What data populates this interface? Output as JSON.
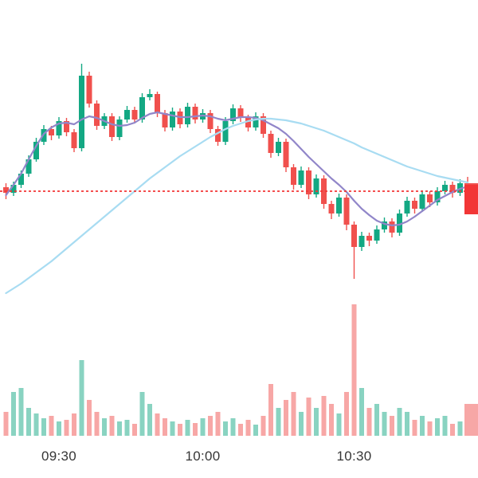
{
  "chart_data": {
    "type": "candlestick",
    "title": "",
    "timeframe_ticks": [
      {
        "label": "09:30",
        "index": 7
      },
      {
        "label": "10:00",
        "index": 26
      },
      {
        "label": "10:30",
        "index": 46
      }
    ],
    "price_axis": {
      "min": 99.48,
      "max": 100.96,
      "grid": false
    },
    "volume_axis": {
      "max": 170
    },
    "previous_close": {
      "price": 100.0,
      "style": "dashed",
      "color": "#f23636"
    },
    "current_price_label": {
      "color": "#f23636"
    },
    "colors": {
      "up": "#13a883",
      "down": "#f0504d",
      "volume_opacity": 0.5
    },
    "candles": [
      [
        100.02,
        100.04,
        99.96,
        99.992,
        30
      ],
      [
        99.992,
        100.048,
        99.976,
        100.032,
        55
      ],
      [
        100.032,
        100.104,
        100.016,
        100.088,
        60
      ],
      [
        100.088,
        100.18,
        100.072,
        100.16,
        35
      ],
      [
        100.16,
        100.268,
        100.148,
        100.248,
        28
      ],
      [
        100.248,
        100.332,
        100.232,
        100.312,
        22
      ],
      [
        100.312,
        100.328,
        100.256,
        100.28,
        25
      ],
      [
        100.28,
        100.372,
        100.264,
        100.352,
        18
      ],
      [
        100.352,
        100.368,
        100.276,
        100.296,
        20
      ],
      [
        100.296,
        100.312,
        100.196,
        100.216,
        28
      ],
      [
        100.216,
        100.64,
        100.2,
        100.58,
        95
      ],
      [
        100.58,
        100.6,
        100.42,
        100.44,
        45
      ],
      [
        100.44,
        100.456,
        100.308,
        100.328,
        30
      ],
      [
        100.328,
        100.392,
        100.312,
        100.376,
        22
      ],
      [
        100.376,
        100.392,
        100.252,
        100.272,
        25
      ],
      [
        100.272,
        100.376,
        100.256,
        100.36,
        18
      ],
      [
        100.36,
        100.428,
        100.344,
        100.408,
        20
      ],
      [
        100.408,
        100.424,
        100.34,
        100.36,
        15
      ],
      [
        100.36,
        100.492,
        100.344,
        100.472,
        55
      ],
      [
        100.472,
        100.512,
        100.456,
        100.488,
        40
      ],
      [
        100.488,
        100.5,
        100.372,
        100.392,
        28
      ],
      [
        100.392,
        100.408,
        100.3,
        100.32,
        22
      ],
      [
        100.32,
        100.42,
        100.304,
        100.4,
        18
      ],
      [
        100.4,
        100.416,
        100.316,
        100.336,
        15
      ],
      [
        100.336,
        100.444,
        100.32,
        100.424,
        20
      ],
      [
        100.424,
        100.44,
        100.34,
        100.36,
        16
      ],
      [
        100.36,
        100.412,
        100.344,
        100.392,
        22
      ],
      [
        100.392,
        100.408,
        100.292,
        100.312,
        25
      ],
      [
        100.312,
        100.328,
        100.228,
        100.248,
        30
      ],
      [
        100.248,
        100.372,
        100.232,
        100.352,
        18
      ],
      [
        100.352,
        100.436,
        100.336,
        100.416,
        22
      ],
      [
        100.416,
        100.432,
        100.348,
        100.368,
        15
      ],
      [
        100.368,
        100.384,
        100.3,
        100.32,
        20
      ],
      [
        100.32,
        100.396,
        100.304,
        100.376,
        14
      ],
      [
        100.376,
        100.392,
        100.268,
        100.288,
        25
      ],
      [
        100.288,
        100.304,
        100.168,
        100.192,
        65
      ],
      [
        100.192,
        100.268,
        100.176,
        100.248,
        35
      ],
      [
        100.248,
        100.264,
        100.096,
        100.12,
        45
      ],
      [
        100.12,
        100.136,
        100.008,
        100.032,
        55
      ],
      [
        100.032,
        100.124,
        100.016,
        100.104,
        30
      ],
      [
        100.104,
        100.12,
        99.96,
        99.984,
        48
      ],
      [
        99.984,
        100.084,
        99.968,
        100.064,
        35
      ],
      [
        100.064,
        100.08,
        99.912,
        99.936,
        50
      ],
      [
        99.936,
        99.952,
        99.86,
        99.888,
        40
      ],
      [
        99.888,
        99.988,
        99.872,
        99.968,
        28
      ],
      [
        99.968,
        99.984,
        99.804,
        99.832,
        55
      ],
      [
        99.832,
        99.848,
        99.56,
        99.72,
        165
      ],
      [
        99.72,
        99.796,
        99.7,
        99.776,
        60
      ],
      [
        99.776,
        99.792,
        99.724,
        99.752,
        35
      ],
      [
        99.752,
        99.828,
        99.736,
        99.808,
        40
      ],
      [
        99.808,
        99.868,
        99.792,
        99.848,
        30
      ],
      [
        99.848,
        99.864,
        99.768,
        99.792,
        25
      ],
      [
        99.792,
        99.908,
        99.776,
        99.888,
        35
      ],
      [
        99.888,
        99.972,
        99.872,
        99.952,
        30
      ],
      [
        99.952,
        99.968,
        99.888,
        99.912,
        20
      ],
      [
        99.912,
        100.004,
        99.896,
        99.984,
        25
      ],
      [
        99.984,
        100.0,
        99.92,
        99.944,
        18
      ],
      [
        99.944,
        100.02,
        99.928,
        100.0,
        22
      ],
      [
        100.0,
        100.052,
        99.984,
        100.032,
        25
      ],
      [
        100.032,
        100.048,
        99.968,
        99.992,
        15
      ],
      [
        99.992,
        100.06,
        99.976,
        100.04,
        18
      ],
      [
        100.04,
        100.072,
        100.016,
        100.032,
        40
      ]
    ],
    "overlays": [
      {
        "name": "ma-fast",
        "color": "#9186c9",
        "values": [
          99.98,
          100.032,
          100.088,
          100.16,
          100.228,
          100.288,
          100.32,
          100.34,
          100.344,
          100.336,
          100.36,
          100.376,
          100.368,
          100.352,
          100.336,
          100.328,
          100.332,
          100.344,
          100.368,
          100.388,
          100.396,
          100.388,
          100.38,
          100.372,
          100.372,
          100.376,
          100.38,
          100.376,
          100.364,
          100.356,
          100.364,
          100.372,
          100.372,
          100.368,
          100.356,
          100.336,
          100.316,
          100.288,
          100.252,
          100.212,
          100.172,
          100.136,
          100.1,
          100.064,
          100.032,
          99.996,
          99.952,
          99.912,
          99.88,
          99.852,
          99.836,
          99.828,
          99.832,
          99.848,
          99.872,
          99.9,
          99.928,
          99.956,
          99.976,
          99.996,
          100.012,
          100.024
        ]
      },
      {
        "name": "ma-slow",
        "color": "#a8dcf2",
        "values": [
          99.488,
          99.512,
          99.536,
          99.564,
          99.592,
          99.62,
          99.648,
          99.68,
          99.712,
          99.744,
          99.776,
          99.808,
          99.84,
          99.872,
          99.904,
          99.936,
          99.968,
          100.0,
          100.032,
          100.064,
          100.092,
          100.12,
          100.148,
          100.176,
          100.2,
          100.224,
          100.248,
          100.272,
          100.292,
          100.312,
          100.328,
          100.34,
          100.352,
          100.36,
          100.364,
          100.364,
          100.36,
          100.356,
          100.348,
          100.34,
          100.328,
          100.316,
          100.304,
          100.288,
          100.272,
          100.256,
          100.24,
          100.22,
          100.204,
          100.188,
          100.172,
          100.156,
          100.14,
          100.124,
          100.112,
          100.1,
          100.088,
          100.076,
          100.068,
          100.06,
          100.052,
          100.044
        ]
      }
    ]
  }
}
